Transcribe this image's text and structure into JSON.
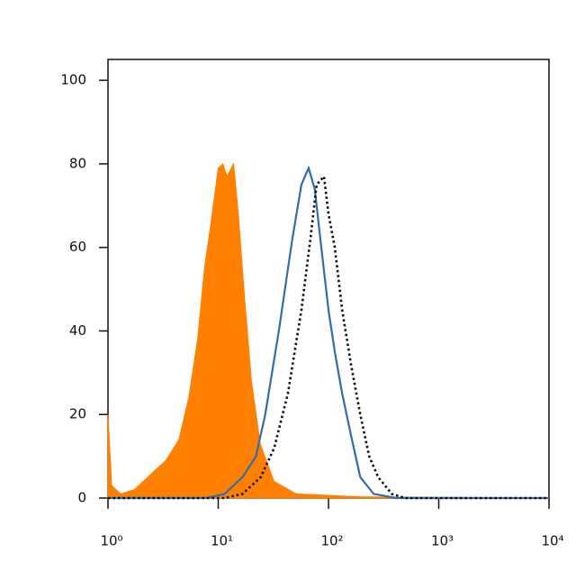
{
  "chart_data": {
    "type": "line",
    "xscale": "log",
    "xlim": [
      1,
      10000
    ],
    "xticks": [
      {
        "value": 1,
        "label": "10⁰"
      },
      {
        "value": 10,
        "label": "10¹"
      },
      {
        "value": 100,
        "label": "10²"
      },
      {
        "value": 1000,
        "label": "10³"
      },
      {
        "value": 10000,
        "label": "10⁴"
      }
    ],
    "ylim": [
      0,
      105
    ],
    "yticks": [
      0,
      20,
      40,
      60,
      80,
      100
    ],
    "series": [
      {
        "color": "#ff8000",
        "style": "filled",
        "x": [
          1,
          1.08,
          1.3,
          1.73,
          2.3,
          3.35,
          4.4,
          5.4,
          6.5,
          7.5,
          8.6,
          10,
          11,
          12,
          13.8,
          15.2,
          17.3,
          20,
          24,
          32,
          51,
          195,
          10000
        ],
        "values": [
          20,
          3,
          1,
          2,
          5,
          9,
          14,
          24,
          38,
          55,
          66,
          79,
          80,
          77,
          80,
          68,
          48,
          28,
          13,
          4,
          1,
          0.3,
          0
        ]
      },
      {
        "color": "#2f6eaa",
        "style": "solid",
        "x": [
          1,
          7.8,
          11.4,
          16.6,
          22,
          26.7,
          35.4,
          47,
          56.8,
          66,
          75,
          86,
          100,
          114,
          133,
          160,
          194,
          257,
          412,
          10000
        ],
        "values": [
          0,
          0,
          1,
          5,
          10,
          20,
          40,
          62,
          75,
          79,
          74,
          60,
          45,
          35,
          25,
          15,
          5,
          1,
          0,
          0
        ]
      },
      {
        "color": "#111111",
        "style": "dotted",
        "x": [
          1,
          11.4,
          16.6,
          24.3,
          32.2,
          42.8,
          56.8,
          68.6,
          78,
          91,
          100,
          114,
          133,
          160,
          194,
          234,
          282,
          375,
          497,
          10000
        ],
        "values": [
          0,
          0,
          1,
          5,
          12,
          25,
          45,
          62,
          75,
          77,
          68,
          60,
          45,
          32,
          20,
          10,
          5,
          1,
          0,
          0
        ]
      }
    ]
  }
}
